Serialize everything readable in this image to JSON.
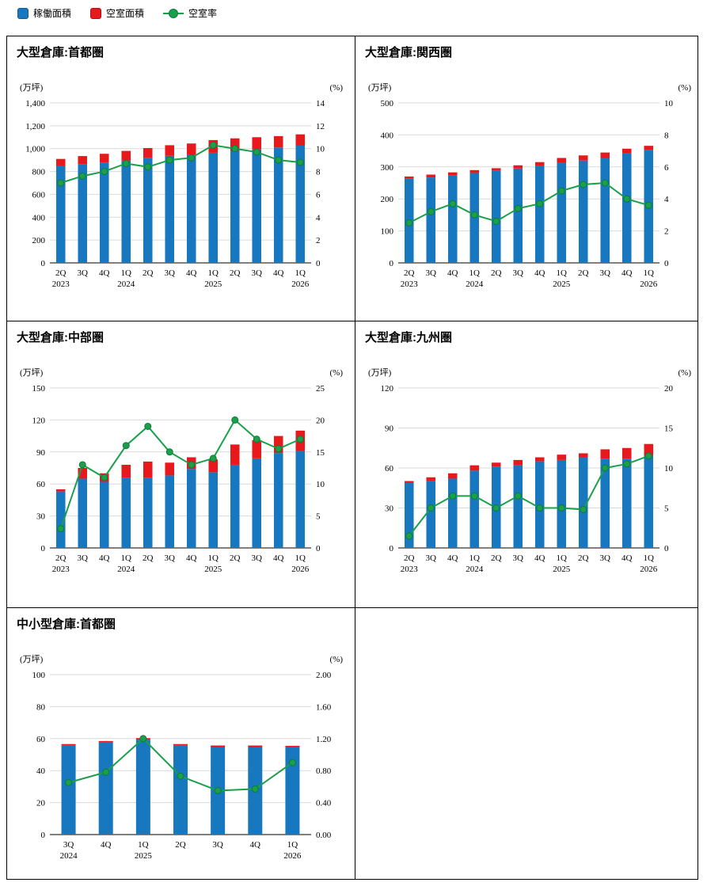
{
  "legend": {
    "items": [
      {
        "label": "稼働面積",
        "type": "square",
        "color": "#1878bf"
      },
      {
        "label": "空室面積",
        "type": "square",
        "color": "#e8191d"
      },
      {
        "label": "空室率",
        "type": "line-dot",
        "color": "#1aa04b"
      }
    ]
  },
  "colors": {
    "occupied": "#1878bf",
    "vacant": "#e8191d",
    "rate": "#1aa04b",
    "rate_border": "#0e7a38",
    "grid": "#d9d9d9",
    "axis": "#000000"
  },
  "chart_data": [
    {
      "type": "stacked-bar+line",
      "title": "大型倉庫:首都圏",
      "unit_left": "(万坪)",
      "unit_right": "(%)",
      "left_axis": {
        "min": 0,
        "max": 1400,
        "step": 200,
        "thousands": true
      },
      "right_axis": {
        "min": 0,
        "max": 14,
        "step": 2,
        "decimals": 0
      },
      "categories": [
        {
          "q": "2Q",
          "year": "2023"
        },
        {
          "q": "3Q"
        },
        {
          "q": "4Q"
        },
        {
          "q": "1Q",
          "year": "2024"
        },
        {
          "q": "2Q"
        },
        {
          "q": "3Q"
        },
        {
          "q": "4Q"
        },
        {
          "q": "1Q",
          "year": "2025"
        },
        {
          "q": "2Q"
        },
        {
          "q": "3Q"
        },
        {
          "q": "4Q"
        },
        {
          "q": "1Q",
          "year": "2026"
        }
      ],
      "series": [
        {
          "name": "稼働面積",
          "axis": "left",
          "values": [
            846,
            864,
            879,
            895,
            921,
            937,
            949,
            964,
            981,
            993,
            1010,
            1026
          ]
        },
        {
          "name": "空室面積",
          "axis": "left",
          "values": [
            64,
            71,
            76,
            85,
            84,
            93,
            96,
            111,
            109,
            107,
            100,
            99
          ]
        },
        {
          "name": "空室率",
          "axis": "right",
          "values": [
            7.0,
            7.6,
            8.0,
            8.7,
            8.4,
            9.0,
            9.2,
            10.3,
            10.0,
            9.7,
            9.0,
            8.8
          ]
        }
      ]
    },
    {
      "type": "stacked-bar+line",
      "title": "大型倉庫:関西圏",
      "unit_left": "(万坪)",
      "unit_right": "(%)",
      "left_axis": {
        "min": 0,
        "max": 500,
        "step": 100,
        "thousands": false
      },
      "right_axis": {
        "min": 0,
        "max": 10,
        "step": 2,
        "decimals": 0
      },
      "categories": [
        {
          "q": "2Q",
          "year": "2023"
        },
        {
          "q": "3Q"
        },
        {
          "q": "4Q"
        },
        {
          "q": "1Q",
          "year": "2024"
        },
        {
          "q": "2Q"
        },
        {
          "q": "3Q"
        },
        {
          "q": "4Q"
        },
        {
          "q": "1Q",
          "year": "2025"
        },
        {
          "q": "2Q"
        },
        {
          "q": "3Q"
        },
        {
          "q": "4Q"
        },
        {
          "q": "1Q",
          "year": "2026"
        }
      ],
      "series": [
        {
          "name": "稼働面積",
          "axis": "left",
          "values": [
            263,
            267,
            273,
            281,
            288,
            295,
            303,
            313,
            320,
            328,
            343,
            353
          ]
        },
        {
          "name": "空室面積",
          "axis": "left",
          "values": [
            7,
            9,
            10,
            9,
            8,
            10,
            12,
            15,
            16,
            17,
            14,
            13
          ]
        },
        {
          "name": "空室率",
          "axis": "right",
          "values": [
            2.5,
            3.2,
            3.7,
            3.0,
            2.6,
            3.4,
            3.7,
            4.5,
            4.9,
            5.0,
            4.0,
            3.6
          ]
        }
      ]
    },
    {
      "type": "stacked-bar+line",
      "title": "大型倉庫:中部圏",
      "unit_left": "(万坪)",
      "unit_right": "(%)",
      "left_axis": {
        "min": 0,
        "max": 150,
        "step": 30,
        "thousands": false
      },
      "right_axis": {
        "min": 0,
        "max": 25,
        "step": 5,
        "decimals": 0
      },
      "categories": [
        {
          "q": "2Q",
          "year": "2023"
        },
        {
          "q": "3Q"
        },
        {
          "q": "4Q"
        },
        {
          "q": "1Q",
          "year": "2024"
        },
        {
          "q": "2Q"
        },
        {
          "q": "3Q"
        },
        {
          "q": "4Q"
        },
        {
          "q": "1Q",
          "year": "2025"
        },
        {
          "q": "2Q"
        },
        {
          "q": "3Q"
        },
        {
          "q": "4Q"
        },
        {
          "q": "1Q",
          "year": "2026"
        }
      ],
      "series": [
        {
          "name": "稼働面積",
          "axis": "left",
          "values": [
            53,
            65,
            62,
            66,
            66,
            68,
            74,
            71,
            78,
            84,
            89,
            91
          ]
        },
        {
          "name": "空室面積",
          "axis": "left",
          "values": [
            2,
            10,
            8,
            12,
            15,
            12,
            11,
            12,
            19,
            17,
            16,
            19
          ]
        },
        {
          "name": "空室率",
          "axis": "right",
          "values": [
            3.0,
            13.0,
            11.0,
            16.0,
            19.0,
            15.0,
            13.0,
            14.0,
            20.0,
            17.0,
            15.5,
            17.0
          ]
        }
      ]
    },
    {
      "type": "stacked-bar+line",
      "title": "大型倉庫:九州圏",
      "unit_left": "(万坪)",
      "unit_right": "(%)",
      "left_axis": {
        "min": 0,
        "max": 120,
        "step": 30,
        "thousands": false
      },
      "right_axis": {
        "min": 0,
        "max": 20,
        "step": 5,
        "decimals": 0
      },
      "categories": [
        {
          "q": "2Q",
          "year": "2023"
        },
        {
          "q": "3Q"
        },
        {
          "q": "4Q"
        },
        {
          "q": "1Q",
          "year": "2024"
        },
        {
          "q": "2Q"
        },
        {
          "q": "3Q"
        },
        {
          "q": "4Q"
        },
        {
          "q": "1Q",
          "year": "2025"
        },
        {
          "q": "2Q"
        },
        {
          "q": "3Q"
        },
        {
          "q": "4Q"
        },
        {
          "q": "1Q",
          "year": "2026"
        }
      ],
      "series": [
        {
          "name": "稼働面積",
          "axis": "left",
          "values": [
            49,
            50,
            52,
            58,
            61,
            62,
            65,
            66,
            68,
            67,
            67,
            69
          ]
        },
        {
          "name": "空室面積",
          "axis": "left",
          "values": [
            1,
            3,
            4,
            4,
            3,
            4,
            3,
            4,
            3,
            7,
            8,
            9
          ]
        },
        {
          "name": "空室率",
          "axis": "right",
          "values": [
            1.5,
            5.0,
            6.5,
            6.5,
            5.0,
            6.5,
            5.0,
            5.0,
            4.8,
            10.0,
            10.5,
            11.5
          ]
        }
      ]
    },
    {
      "type": "stacked-bar+line",
      "title": "中小型倉庫:首都圏",
      "unit_left": "(万坪)",
      "unit_right": "(%)",
      "left_axis": {
        "min": 0,
        "max": 100,
        "step": 20,
        "thousands": false
      },
      "right_axis": {
        "min": 0,
        "max": 2.0,
        "step": 0.4,
        "decimals": 2
      },
      "categories": [
        {
          "q": "3Q",
          "year": "2024"
        },
        {
          "q": "4Q"
        },
        {
          "q": "1Q",
          "year": "2025"
        },
        {
          "q": "2Q"
        },
        {
          "q": "3Q"
        },
        {
          "q": "4Q"
        },
        {
          "q": "1Q",
          "year": "2026"
        }
      ],
      "series": [
        {
          "name": "稼働面積",
          "axis": "left",
          "values": [
            55.6,
            57.5,
            59.3,
            55.6,
            54.7,
            54.7,
            54.5
          ]
        },
        {
          "name": "空室面積",
          "axis": "left",
          "values": [
            0.4,
            0.5,
            0.7,
            0.4,
            0.3,
            0.3,
            0.5
          ]
        },
        {
          "name": "空室率",
          "axis": "right",
          "values": [
            0.65,
            0.78,
            1.2,
            0.73,
            0.55,
            0.57,
            0.9
          ]
        }
      ]
    }
  ]
}
